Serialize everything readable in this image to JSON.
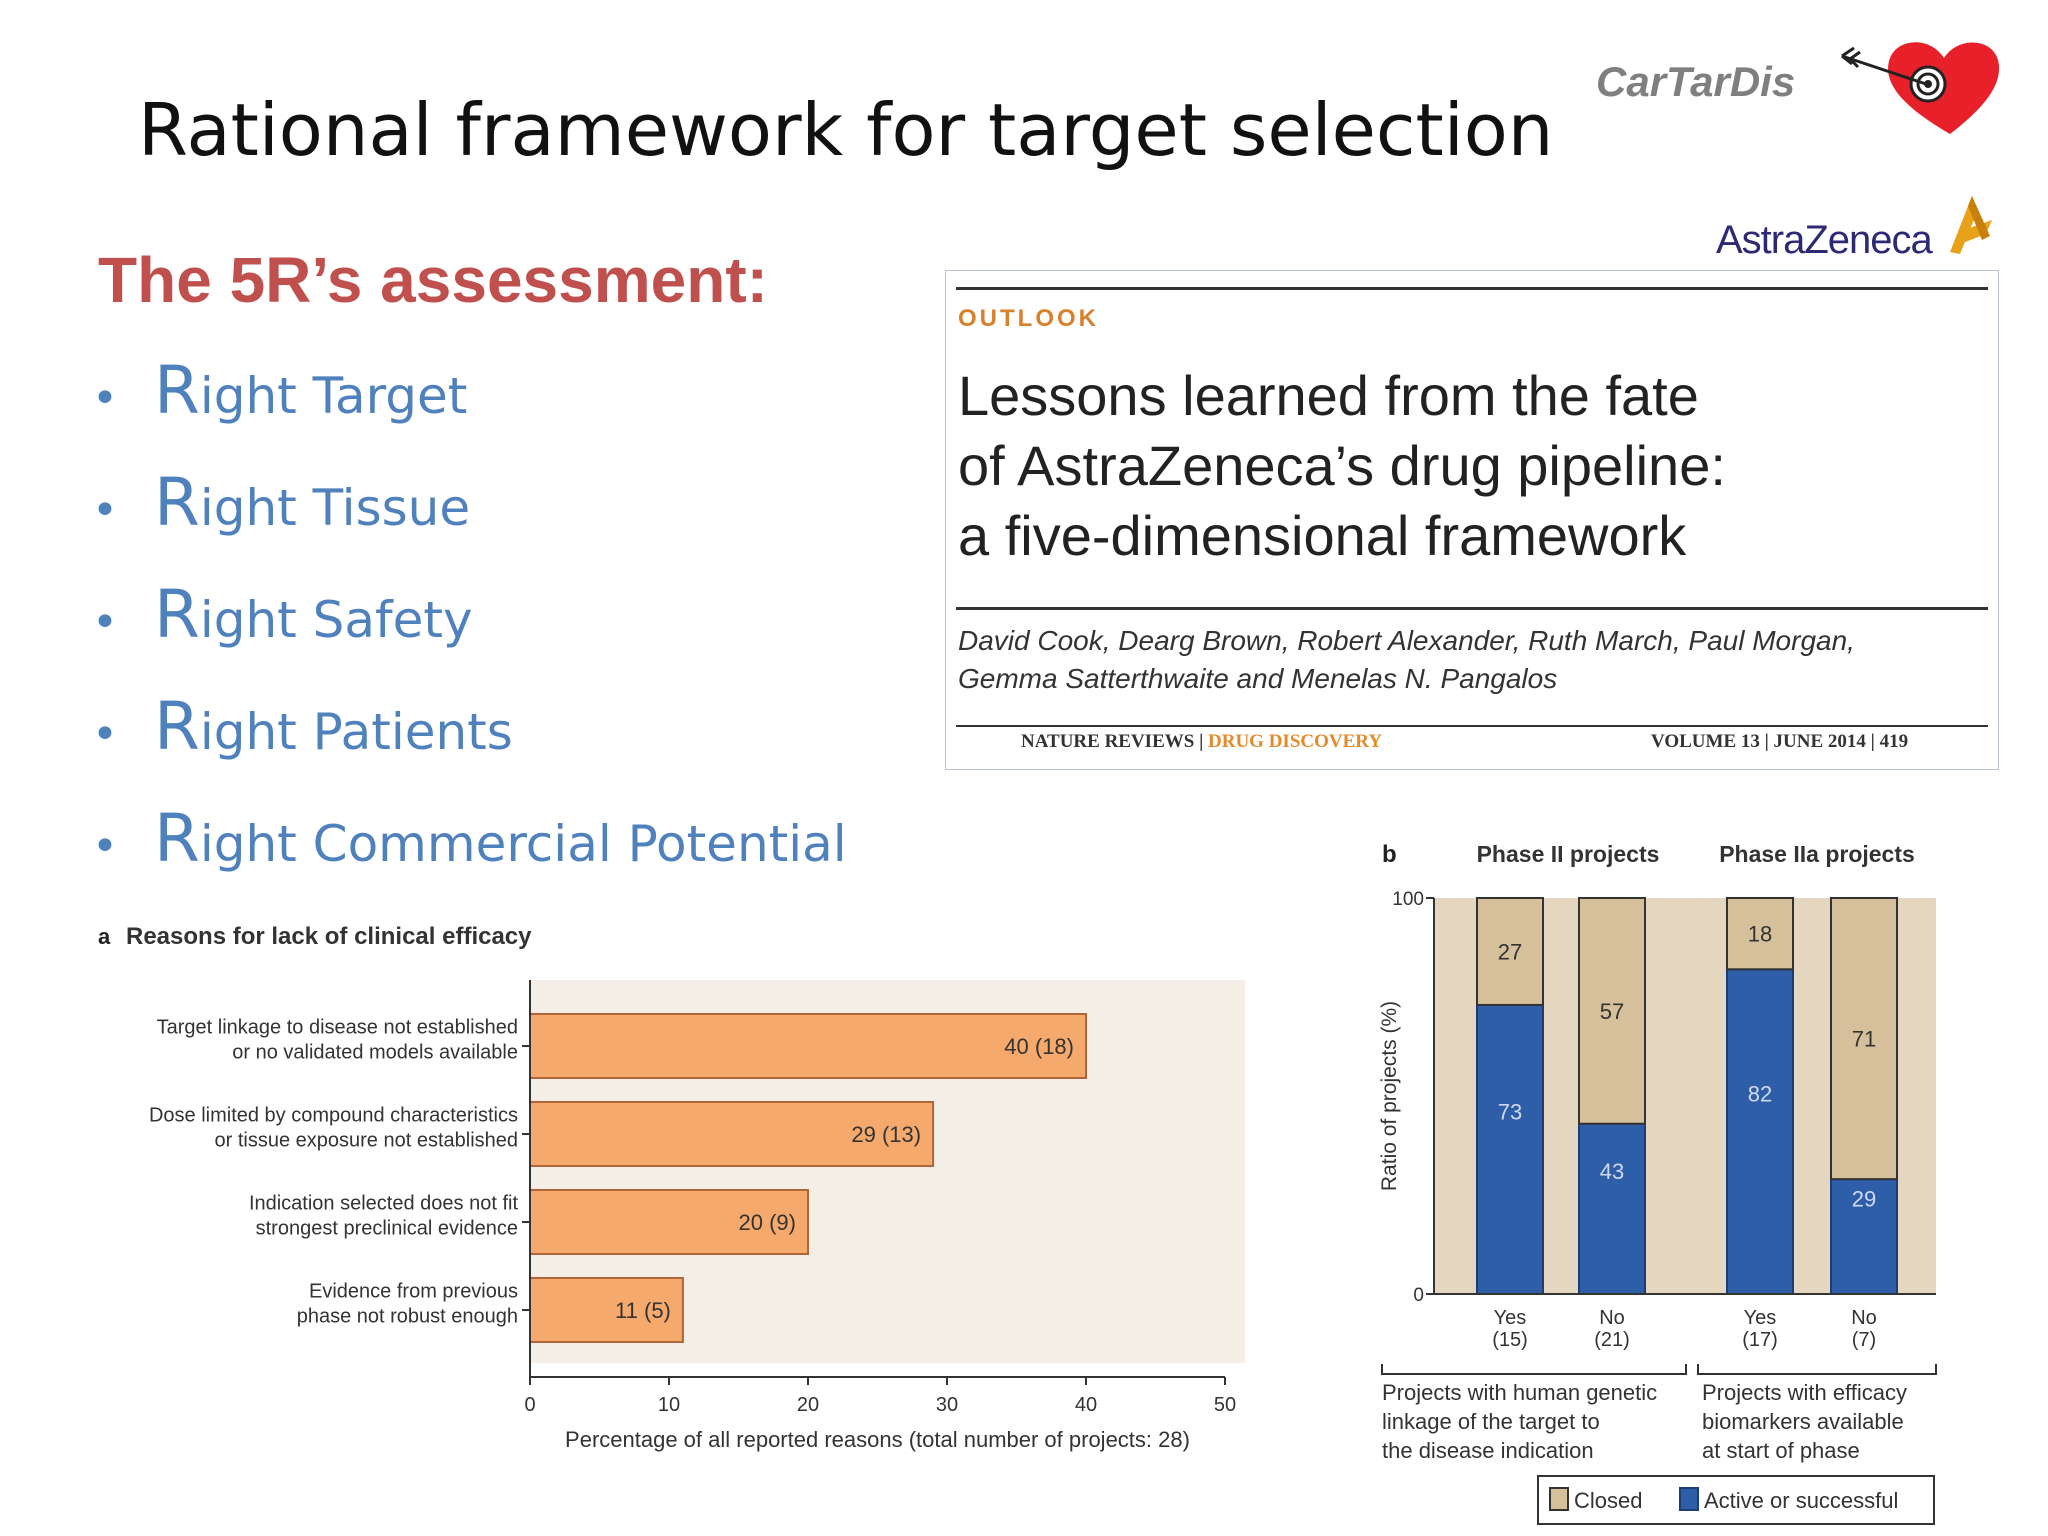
{
  "slide": {
    "title": "Rational framework for target selection",
    "brand": "CarTarDis",
    "company_logo": "AstraZeneca",
    "assessment_heading": "The 5R’s assessment:",
    "bullets": [
      {
        "initial": "R",
        "rest": "ight Target"
      },
      {
        "initial": "R",
        "rest": "ight Tissue"
      },
      {
        "initial": "R",
        "rest": "ight Safety"
      },
      {
        "initial": "R",
        "rest": "ight Patients"
      },
      {
        "initial": "R",
        "rest": "ight Commercial Potential"
      }
    ],
    "bullet_glyph": "•"
  },
  "paper": {
    "section": "OUTLOOK",
    "title_lines": [
      "Lessons learned from the fate",
      "of AstraZeneca’s drug pipeline:",
      "a five-dimensional framework"
    ],
    "authors_lines": [
      "David Cook, Dearg Brown, Robert Alexander, Ruth March, Paul Morgan,",
      "Gemma Satterthwaite and Menelas N. Pangalos"
    ],
    "journal_left": "NATURE REVIEWS",
    "journal_right": "DRUG DISCOVERY",
    "issue": "VOLUME 13 | JUNE 2014 | 419"
  },
  "colors": {
    "title": "#111111",
    "heading_red": "#c0504d",
    "bullet_blue": "#4f81bd",
    "bar_orange": "#f5a96c",
    "closed_tan": "#d6c09c",
    "active_blue": "#2f5ea8"
  },
  "chart_data": [
    {
      "type": "bar",
      "orientation": "horizontal",
      "panel_label": "a",
      "title": "Reasons for lack of clinical efficacy",
      "categories": [
        [
          "Target linkage to disease not established",
          "or no validated models available"
        ],
        [
          "Dose limited by compound characteristics",
          "or tissue exposure not established"
        ],
        [
          "Indication selected does not fit",
          "strongest preclinical evidence"
        ],
        [
          "Evidence from previous",
          "phase not robust enough"
        ]
      ],
      "values": [
        40,
        29,
        20,
        11
      ],
      "data_labels": [
        "40 (18)",
        "29 (13)",
        "20 (9)",
        "11 (5)"
      ],
      "xlabel": "Percentage of all reported reasons (total number of projects: 28)",
      "xlim": [
        0,
        50
      ],
      "xticks": [
        "0",
        "10",
        "20",
        "30",
        "40",
        "50"
      ]
    },
    {
      "type": "bar",
      "stacked": true,
      "panel_label": "b",
      "group_titles": [
        "Phase II projects",
        "Phase IIa projects"
      ],
      "ylabel": "Ratio of projects (%)",
      "ylim": [
        0,
        100
      ],
      "yticks": [
        "0",
        "100"
      ],
      "categories": [
        [
          "Yes",
          "(15)"
        ],
        [
          "No",
          "(21)"
        ],
        [
          "Yes",
          "(17)"
        ],
        [
          "No",
          "(7)"
        ]
      ],
      "series": [
        {
          "name": "Active or successful",
          "values": [
            73,
            43,
            82,
            29
          ]
        },
        {
          "name": "Closed",
          "values": [
            27,
            57,
            18,
            71
          ]
        }
      ],
      "group_captions": [
        [
          "Projects with human genetic",
          "linkage of the target to",
          "the disease indication"
        ],
        [
          "Projects with efficacy",
          "biomarkers available",
          "at start of phase"
        ]
      ],
      "legend": [
        "Closed",
        "Active or successful"
      ]
    }
  ]
}
